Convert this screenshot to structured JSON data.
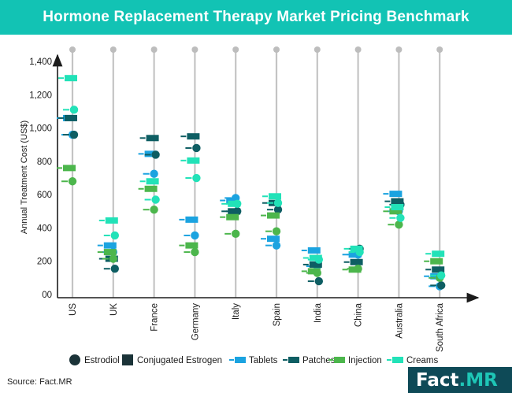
{
  "title": "Hormone Replacement Therapy Market Pricing Benchmark",
  "source": "Source: Fact.MR",
  "brand": {
    "part1": "Fact",
    "part2": ".MR"
  },
  "chart_data": {
    "type": "scatter",
    "title": "Hormone Replacement Therapy Market Pricing Benchmark",
    "ylabel": "Annual Treatment Cost (US$)",
    "xlabel": "",
    "ylim": [
      0,
      1400
    ],
    "yticks": [
      0,
      200,
      400,
      600,
      800,
      1000,
      1200,
      1400
    ],
    "ytick_labels": [
      "00",
      "200",
      "400",
      "600",
      "800",
      "1,000",
      "1,200",
      "1,400"
    ],
    "grid": false,
    "categories": [
      "US",
      "UK",
      "France",
      "Germany",
      "Italy",
      "Spain",
      "India",
      "China",
      "Australia",
      "South Africa"
    ],
    "legend": {
      "position": "bottom",
      "items": [
        {
          "label": "Estrodiol",
          "symbol": "circle",
          "color": "#1b3338"
        },
        {
          "label": "Conjugated Estrogen",
          "symbol": "square",
          "color": "#1b3338"
        },
        {
          "label": "Tablets",
          "symbol": "dash",
          "color": "#1ba3e0"
        },
        {
          "label": "Patches",
          "symbol": "dash",
          "color": "#0e5e63"
        },
        {
          "label": "Injection",
          "symbol": "dash",
          "color": "#4cb64c"
        },
        {
          "label": "Creams",
          "symbol": "dash",
          "color": "#22e2b8"
        }
      ]
    },
    "series": [
      {
        "name": "Tablets",
        "color": "#1ba3e0",
        "estrodiol": [
          960,
          255,
          725,
          355,
          580,
          295,
          170,
          240,
          500,
          50
        ],
        "conjugated": [
          1060,
          295,
          845,
          450,
          565,
          335,
          265,
          240,
          605,
          110
        ]
      },
      {
        "name": "Patches",
        "color": "#0e5e63",
        "estrodiol": [
          960,
          155,
          840,
          880,
          500,
          510,
          80,
          275,
          540,
          55
        ],
        "conjugated": [
          1060,
          215,
          940,
          950,
          500,
          550,
          180,
          195,
          560,
          150
        ]
      },
      {
        "name": "Injection",
        "color": "#4cb64c",
        "estrodiol": [
          680,
          215,
          510,
          255,
          365,
          380,
          130,
          155,
          420,
          100
        ],
        "conjugated": [
          760,
          255,
          635,
          295,
          465,
          475,
          140,
          150,
          500,
          200
        ]
      },
      {
        "name": "Creams",
        "color": "#22e2b8",
        "estrodiol": [
          1110,
          355,
          570,
          700,
          545,
          550,
          210,
          255,
          460,
          115
        ],
        "conjugated": [
          1300,
          445,
          680,
          805,
          545,
          590,
          220,
          275,
          525,
          245
        ]
      }
    ]
  }
}
